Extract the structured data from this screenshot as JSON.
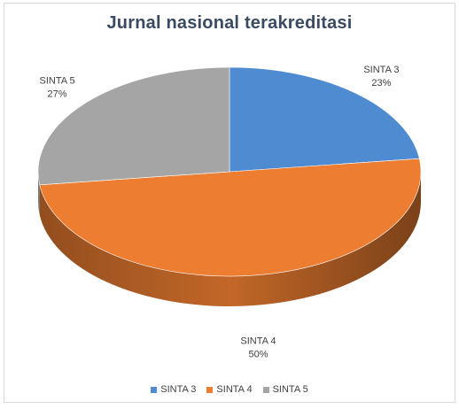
{
  "chart_data": {
    "type": "pie",
    "title": "Jurnal nasional terakreditasi",
    "categories": [
      "SINTA 3",
      "SINTA 4",
      "SINTA 5"
    ],
    "values": [
      23,
      50,
      27
    ],
    "value_labels": [
      "23%",
      "50%",
      "27%"
    ],
    "colors": [
      "#4f8bd0",
      "#ed7d31",
      "#a5a5a5"
    ],
    "legend_position": "bottom",
    "style": "3d"
  }
}
